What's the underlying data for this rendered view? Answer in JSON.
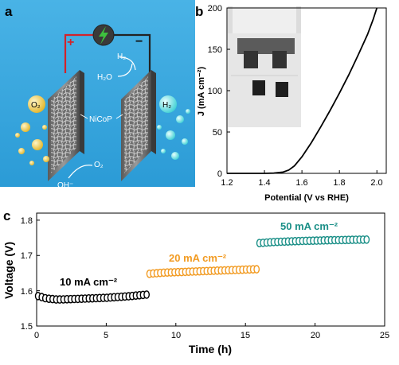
{
  "panel_labels": {
    "a": "a",
    "b": "b",
    "c": "c"
  },
  "schematic": {
    "plus": "+",
    "minus": "−",
    "o2_left": "O₂",
    "h2_right": "H₂",
    "h2_top": "H₂",
    "h2o": "H₂O",
    "nicop": "NiCoP",
    "o2_bottom": "O₂",
    "oh": "OH⁻",
    "colors": {
      "background": "#3aa6de",
      "wire_left": "#d2232a",
      "wire_right": "#222222",
      "power": "#3a3a3a",
      "bolt": "#3ec23e"
    },
    "icons": [
      "power-supply-icon",
      "lightning-bolt-icon",
      "electrode-plate-icon",
      "bubble-icon"
    ]
  },
  "chart_data": [
    {
      "type": "line",
      "panel": "b",
      "xlabel": "Potential (V vs RHE)",
      "ylabel": "J (mA cm⁻²)",
      "xlim": [
        1.2,
        2.05
      ],
      "ylim": [
        0,
        200
      ],
      "xticks": [
        "1.2",
        "1.4",
        "1.6",
        "1.8",
        "2.0"
      ],
      "yticks": [
        "0",
        "50",
        "100",
        "150",
        "200"
      ],
      "series": [
        {
          "color": "#000000",
          "x": [
            1.2,
            1.3,
            1.4,
            1.45,
            1.5,
            1.53,
            1.56,
            1.6,
            1.65,
            1.7,
            1.75,
            1.8,
            1.85,
            1.9,
            1.95,
            1.98,
            2.0
          ],
          "y": [
            0,
            0,
            0,
            0.3,
            1.5,
            4,
            9,
            20,
            37,
            56,
            76,
            97,
            119,
            143,
            168,
            186,
            200
          ]
        }
      ],
      "inset_photo": "electrolyzer-beaker-photo"
    },
    {
      "type": "scatter",
      "panel": "c",
      "xlabel": "Time (h)",
      "ylabel": "Voltage (V)",
      "xlim": [
        0,
        25
      ],
      "ylim": [
        1.5,
        1.82
      ],
      "xticks": [
        "0",
        "5",
        "10",
        "15",
        "20",
        "25"
      ],
      "yticks": [
        "1.5",
        "1.6",
        "1.7",
        "1.8"
      ],
      "annotations": [
        {
          "text": "10 mA cm⁻²",
          "color": "#000000"
        },
        {
          "text": "20 mA cm⁻²",
          "color": "#f29b22"
        },
        {
          "text": "50 mA cm⁻²",
          "color": "#1a8f87"
        }
      ],
      "series": [
        {
          "color": "#000000",
          "x_start": 0.1,
          "x_end": 7.9,
          "count": 31,
          "profile": [
            [
              0.1,
              1.585
            ],
            [
              0.7,
              1.578
            ],
            [
              1.5,
              1.575
            ],
            [
              3,
              1.577
            ],
            [
              5,
              1.58
            ],
            [
              6.5,
              1.584
            ],
            [
              7.9,
              1.589
            ]
          ]
        },
        {
          "color": "#f29b22",
          "x_start": 8.1,
          "x_end": 15.8,
          "count": 31,
          "profile": [
            [
              8.1,
              1.648
            ],
            [
              9,
              1.651
            ],
            [
              11,
              1.654
            ],
            [
              13,
              1.657
            ],
            [
              15.8,
              1.661
            ]
          ]
        },
        {
          "color": "#1a8f87",
          "x_start": 16.0,
          "x_end": 23.7,
          "count": 31,
          "profile": [
            [
              16.0,
              1.735
            ],
            [
              17,
              1.738
            ],
            [
              19,
              1.741
            ],
            [
              21,
              1.743
            ],
            [
              23.7,
              1.745
            ]
          ]
        }
      ]
    }
  ]
}
